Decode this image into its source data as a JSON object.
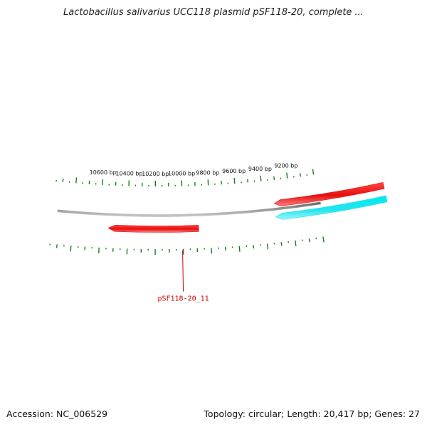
{
  "title": "Lactobacillus salivarius UCC118 plasmid pSF118-20, complete ...",
  "footer": {
    "accession": "Accession: NC_006529",
    "topology": "Topology: circular; Length: 20,417 bp; Genes: 27"
  },
  "plasmid": {
    "length_bp": 20417,
    "visible_range_bp": [
      9100,
      10800
    ],
    "tick_labels": [
      {
        "bp": 9200,
        "text": "9200 bp"
      },
      {
        "bp": 9400,
        "text": "9400 bp"
      },
      {
        "bp": 9600,
        "text": "9600 bp"
      },
      {
        "bp": 9800,
        "text": "9800 bp"
      },
      {
        "bp": 10000,
        "text": "10000 bp"
      },
      {
        "bp": 10200,
        "text": "10200 bp"
      },
      {
        "bp": 10400,
        "text": "10400 bp"
      },
      {
        "bp": 10600,
        "text": "10600 bp"
      }
    ],
    "genes": [
      {
        "start": 9885,
        "end": 10541,
        "strand": "-",
        "color": "#ee1111",
        "label": "pSF118-20_11",
        "label_color": "#cc0000"
      },
      {
        "start": 8500,
        "end": 9320,
        "strand": "-",
        "color": "#ee1111",
        "label": ""
      },
      {
        "start": 8500,
        "end": 9320,
        "strand": "-",
        "color": "#22e5ee",
        "label": ""
      }
    ]
  },
  "colors": {
    "backbone": "#8a8a8a",
    "ticks": "#1a7a1a",
    "gene_red": "#ee1111",
    "gene_cyan": "#22e5ee"
  }
}
